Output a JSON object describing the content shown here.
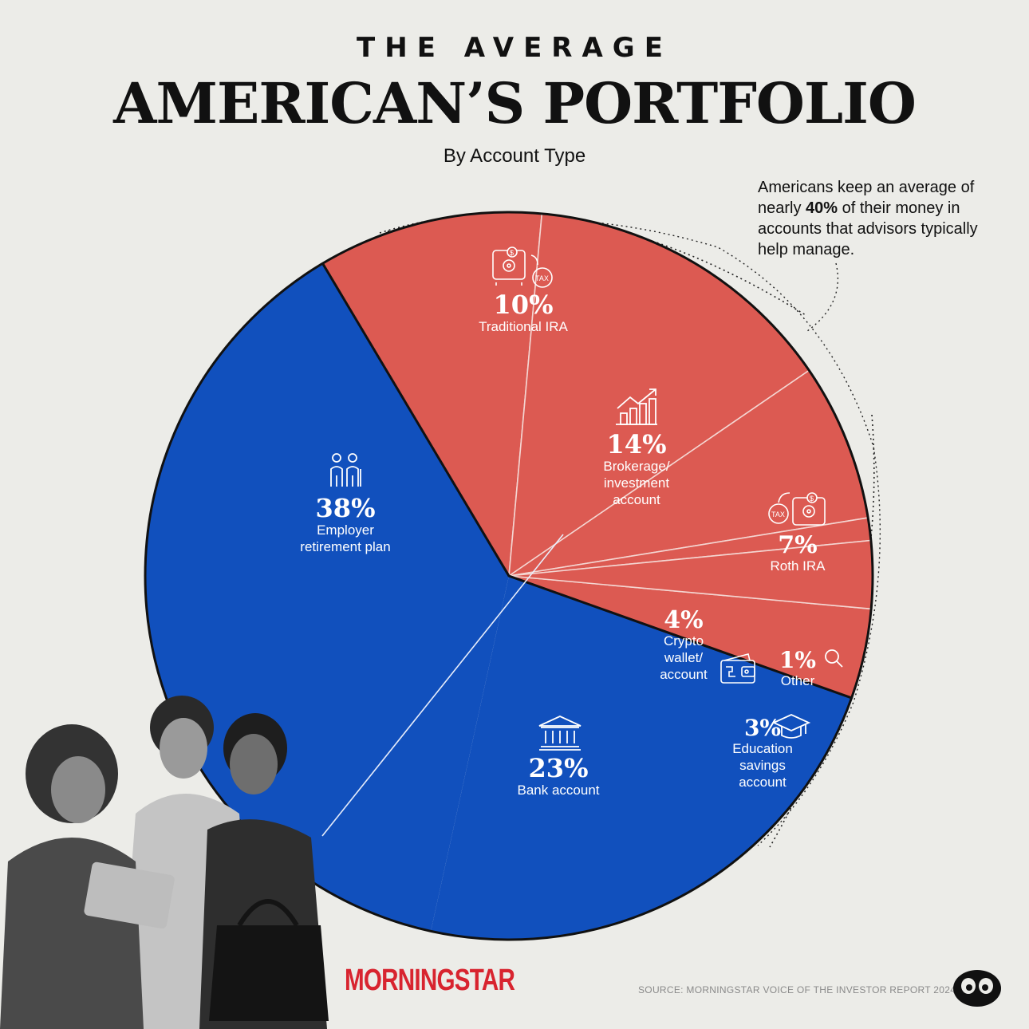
{
  "header": {
    "kicker": "THE AVERAGE",
    "title": "AMERICAN’S PORTFOLIO",
    "subtitle": "By Account Type"
  },
  "annotation": {
    "line1": "Americans keep an average of",
    "line2_pre": "nearly ",
    "line2_bold": "40%",
    "line2_post": " of their money in",
    "line3": "accounts that advisors typically",
    "line4": "help manage."
  },
  "colors": {
    "blue": "#1150bd",
    "red": "#dc5a52",
    "background": "#ecece8"
  },
  "chart_data": {
    "type": "pie",
    "title": "AMERICAN’S PORTFOLIO",
    "subtitle": "By Account Type",
    "slices": [
      {
        "label": "Employer retirement plan",
        "label_lines": [
          "Employer",
          "retirement plan"
        ],
        "pct_label": "38%",
        "value": 38,
        "group": "blue",
        "icon": "family-icon"
      },
      {
        "label": "Traditional IRA",
        "label_lines": [
          "Traditional IRA"
        ],
        "pct_label": "10%",
        "value": 10,
        "group": "red",
        "icon": "safe-tax-icon"
      },
      {
        "label": "Brokerage/investment account",
        "label_lines": [
          "Brokerage/",
          "investment",
          "account"
        ],
        "pct_label": "14%",
        "value": 14,
        "group": "red",
        "icon": "chart-growth-icon"
      },
      {
        "label": "Roth IRA",
        "label_lines": [
          "Roth IRA"
        ],
        "pct_label": "7%",
        "value": 7,
        "group": "red",
        "icon": "tax-safe-icon"
      },
      {
        "label": "Crypto wallet/account",
        "label_lines": [
          "Crypto",
          "wallet/",
          "account"
        ],
        "pct_label": "4%",
        "value": 4,
        "group": "red",
        "icon": "wallet-icon"
      },
      {
        "label": "Other",
        "label_lines": [
          "Other"
        ],
        "pct_label": "1%",
        "value": 1,
        "group": "red",
        "icon": "search-icon"
      },
      {
        "label": "Education savings account",
        "label_lines": [
          "Education",
          "savings",
          "account"
        ],
        "pct_label": "3%",
        "value": 3,
        "group": "red",
        "icon": "graduation-cap-icon"
      },
      {
        "label": "Bank account",
        "label_lines": [
          "Bank account"
        ],
        "pct_label": "23%",
        "value": 23,
        "group": "blue",
        "icon": "bank-icon"
      }
    ],
    "legend": "none"
  },
  "footer": {
    "brand": "MORNINGSTAR",
    "source": "SOURCE: MORNINGSTAR VOICE OF THE INVESTOR REPORT 2024"
  }
}
